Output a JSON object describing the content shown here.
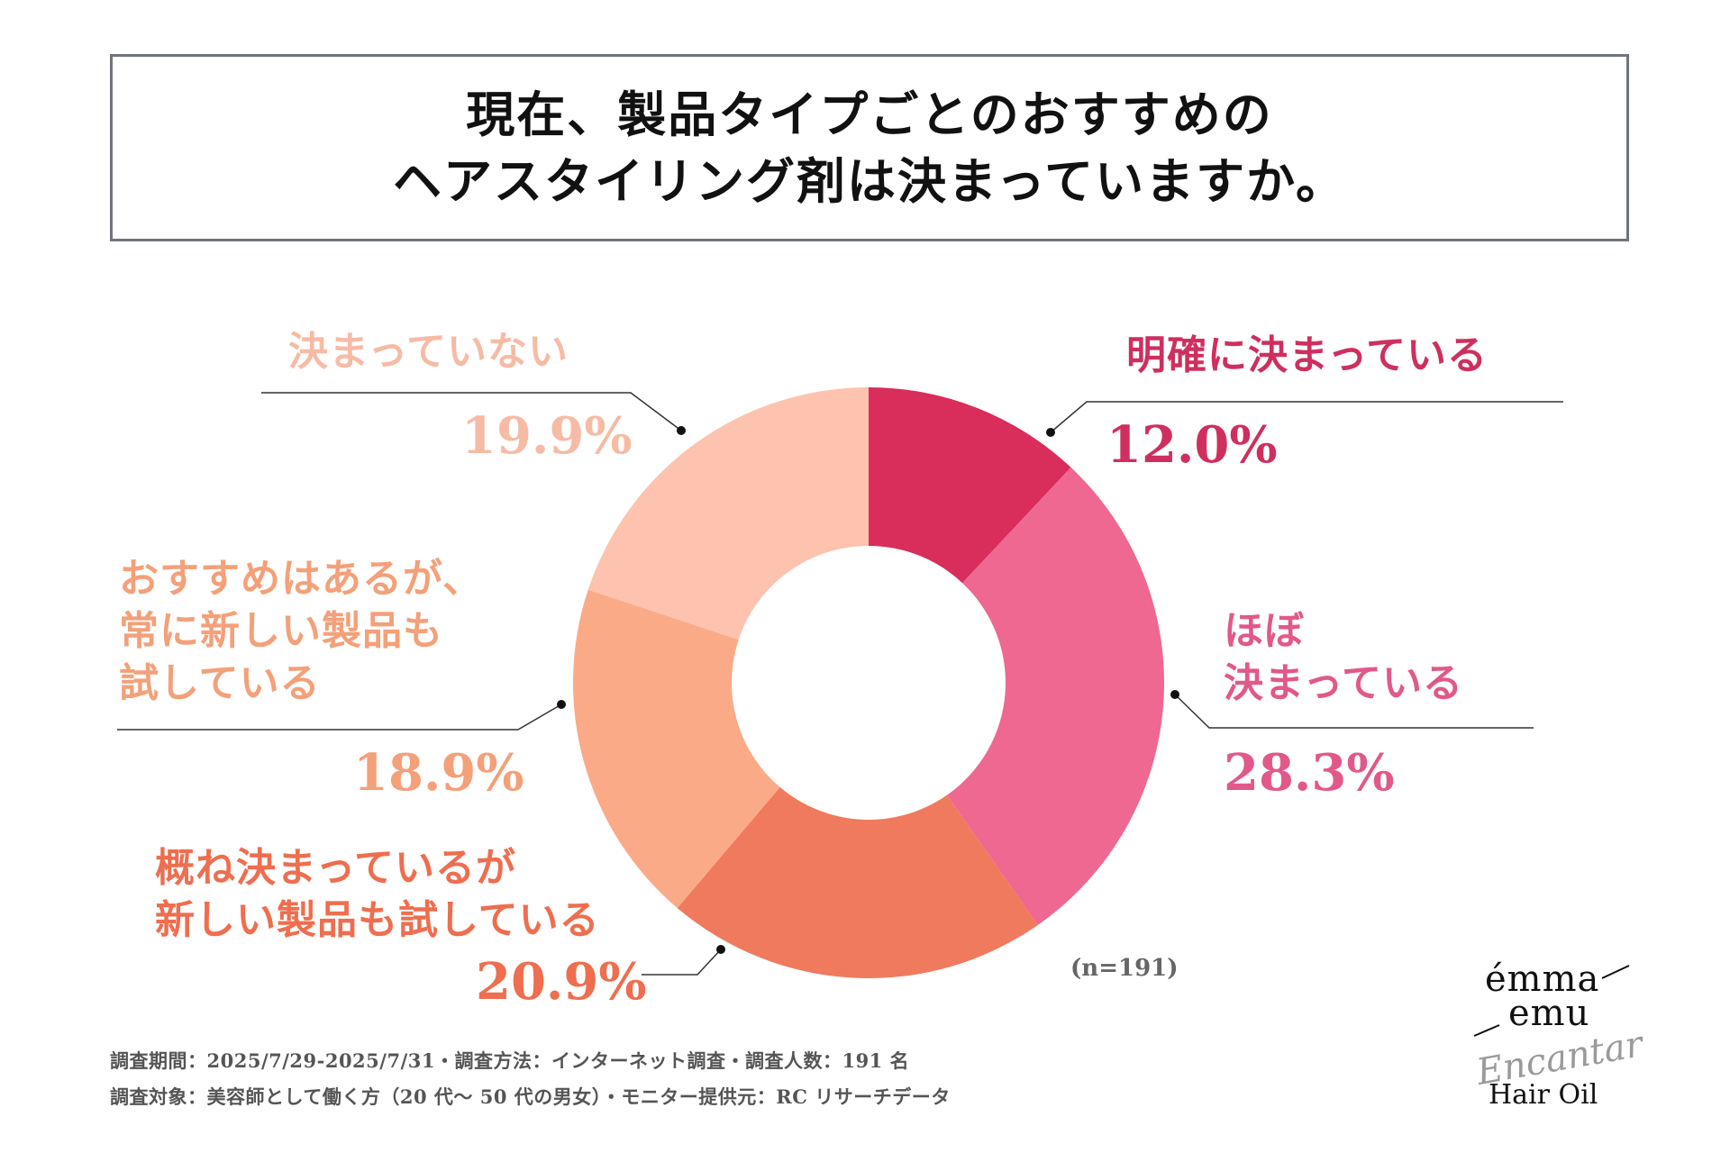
{
  "title": {
    "line1": "現在、製品タイプごとのおすすめの",
    "line2": "ヘアスタイリング剤は決まっていますか。"
  },
  "chart_data": {
    "type": "pie",
    "variant": "donut",
    "title": "現在、製品タイプごとのおすすめのヘアスタイリング剤は決まっていますか。",
    "unit": "%",
    "slices": [
      {
        "label": "明確に決まっている",
        "value": 12.0,
        "display": "12.0%",
        "color": "#d92d5c",
        "text_color": "#cf2f5e"
      },
      {
        "label": "ほぼ決まっている",
        "value": 28.3,
        "display": "28.3%",
        "color": "#ee6891",
        "text_color": "#e2588a"
      },
      {
        "label": "概ね決まっているが新しい製品も試している",
        "value": 20.9,
        "display": "20.9%",
        "color": "#f07a5d",
        "text_color": "#ee6e4f"
      },
      {
        "label": "おすすめはあるが、常に新しい製品も試している",
        "value": 18.9,
        "display": "18.9%",
        "color": "#fbaa88",
        "text_color": "#f4a079"
      },
      {
        "label": "決まっていない",
        "value": 19.9,
        "display": "19.9%",
        "color": "#fdc3ae",
        "text_color": "#f7bba5"
      }
    ],
    "label_lines": {
      "s0": [
        "明確に決まっている"
      ],
      "s1": [
        "ほぼ",
        "決まっている"
      ],
      "s2": [
        "概ね決まっているが",
        "新しい製品も試している"
      ],
      "s3": [
        "おすすめはあるが、",
        "常に新しい製品も",
        "試している"
      ],
      "s4": [
        "決まっていない"
      ]
    },
    "sample_size": "(n=191)",
    "legend": "none"
  },
  "footer": {
    "line1": "調査期間：2025/7/29-2025/7/31・調査方法：インターネット調査・調査人数：191 名",
    "line2": "調査対象：美容師として働く方（20 代～ 50 代の男女）・モニター提供元：RC リサーチデータ"
  },
  "logo": {
    "line1": "émma",
    "line2": "emu",
    "script": "Encantar",
    "product": "Hair Oil"
  }
}
